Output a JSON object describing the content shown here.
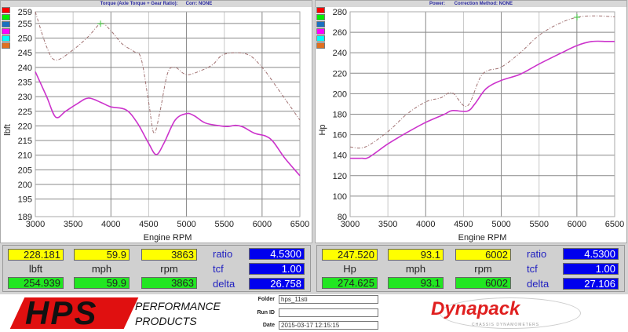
{
  "torque_panel": {
    "title": "Torque (Axle Torque + Gear Ratio):      Corr: NONE"
  },
  "power_panel": {
    "title": "Power:       Correction Method: NONE"
  },
  "legend_swatches": [
    "#ff0000",
    "#00ee00",
    "#1a70c0",
    "#ff00ff",
    "#00ffff",
    "#e07020"
  ],
  "chart_data": [
    {
      "type": "line",
      "xlabel": "Engine RPM",
      "ylabel": "lbft",
      "xlim": [
        3000,
        6500
      ],
      "ylim": [
        189,
        259
      ],
      "xticks": [
        3000,
        3500,
        4000,
        4500,
        5000,
        5500,
        6000,
        6500
      ],
      "yticks": [
        189,
        195,
        200,
        205,
        210,
        215,
        220,
        225,
        230,
        235,
        240,
        245,
        250,
        255,
        259
      ],
      "grid": true,
      "series": [
        {
          "color": "#cc33cc",
          "style": "solid",
          "x": [
            3000,
            3150,
            3270,
            3400,
            3550,
            3700,
            3870,
            4000,
            4200,
            4350,
            4500,
            4600,
            4700,
            4850,
            5000,
            5100,
            5250,
            5450,
            5550,
            5650,
            5750,
            5900,
            6050,
            6150,
            6300,
            6500
          ],
          "y": [
            238.5,
            230,
            223,
            225,
            227.5,
            229.5,
            228,
            226.5,
            225.5,
            221,
            214,
            210.2,
            214,
            222,
            224.2,
            223.5,
            221,
            220,
            219.8,
            220.2,
            219.6,
            217.5,
            216.5,
            214.5,
            209,
            203
          ]
        },
        {
          "color": "#a07070",
          "style": "dashed",
          "x": [
            3000,
            3150,
            3270,
            3500,
            3700,
            3870,
            4000,
            4150,
            4300,
            4400,
            4500,
            4570,
            4650,
            4750,
            4850,
            5000,
            5200,
            5350,
            5500,
            5800,
            6000,
            6200,
            6500
          ],
          "y": [
            259,
            247,
            242.5,
            246,
            250.5,
            255,
            252.5,
            248,
            245.5,
            243,
            228,
            217.5,
            225,
            238,
            240,
            237.5,
            239,
            241,
            244.5,
            244.5,
            240,
            233,
            222
          ]
        }
      ],
      "markers": [
        {
          "x": 3863,
          "y": 254.9,
          "color": "#44cc44"
        }
      ]
    },
    {
      "type": "line",
      "xlabel": "Engine RPM",
      "ylabel": "Hp",
      "xlim": [
        3000,
        6500
      ],
      "ylim": [
        80,
        280
      ],
      "xticks": [
        3000,
        3500,
        4000,
        4500,
        5000,
        5500,
        6000,
        6500
      ],
      "yticks": [
        80,
        100,
        120,
        140,
        160,
        180,
        200,
        220,
        240,
        260,
        280
      ],
      "grid": true,
      "series": [
        {
          "color": "#cc33cc",
          "style": "solid",
          "x": [
            3000,
            3150,
            3250,
            3500,
            3750,
            4000,
            4250,
            4350,
            4550,
            4650,
            4800,
            5000,
            5250,
            5500,
            5800,
            6000,
            6200,
            6400,
            6500
          ],
          "y": [
            137,
            137,
            138,
            151,
            162,
            172,
            180,
            183.5,
            183,
            190,
            205,
            213,
            219,
            229,
            240,
            247,
            251,
            251,
            251
          ]
        },
        {
          "color": "#a07070",
          "style": "dashed",
          "x": [
            3000,
            3200,
            3500,
            3750,
            4000,
            4200,
            4350,
            4550,
            4750,
            5000,
            5250,
            5500,
            5750,
            6000,
            6250,
            6500
          ],
          "y": [
            148,
            148,
            163,
            180,
            192,
            196,
            201,
            188,
            219,
            226,
            240,
            257,
            268,
            274.6,
            276,
            275
          ]
        }
      ],
      "markers": [
        {
          "x": 6002,
          "y": 274.6,
          "color": "#44cc44"
        }
      ]
    }
  ],
  "readout_left": {
    "top": [
      "228.181",
      "59.9",
      "3863"
    ],
    "units": [
      "lbft",
      "mph",
      "rpm"
    ],
    "bottom": [
      "254.939",
      "59.9",
      "3863"
    ],
    "labels": [
      "ratio",
      "tcf",
      "delta"
    ],
    "values": [
      "4.5300",
      "1.00",
      "26.758"
    ]
  },
  "readout_right": {
    "top": [
      "247.520",
      "93.1",
      "6002"
    ],
    "units": [
      "Hp",
      "mph",
      "rpm"
    ],
    "bottom": [
      "274.625",
      "93.1",
      "6002"
    ],
    "labels": [
      "ratio",
      "tcf",
      "delta"
    ],
    "values": [
      "4.5300",
      "1.00",
      "27.106"
    ]
  },
  "footer": {
    "logo_text": "HPS",
    "logo_sub1": "PERFORMANCE",
    "logo_sub2": "PRODUCTS",
    "folder_label": "Folder",
    "folder_value": "hps_11sti",
    "runid_label": "Run ID",
    "runid_value": "",
    "date_label": "Date",
    "date_value": "2015-03-17 12:15:15",
    "brand": "Dynapack",
    "brand_sub": "CHASSIS DYNAMOMETERS"
  }
}
